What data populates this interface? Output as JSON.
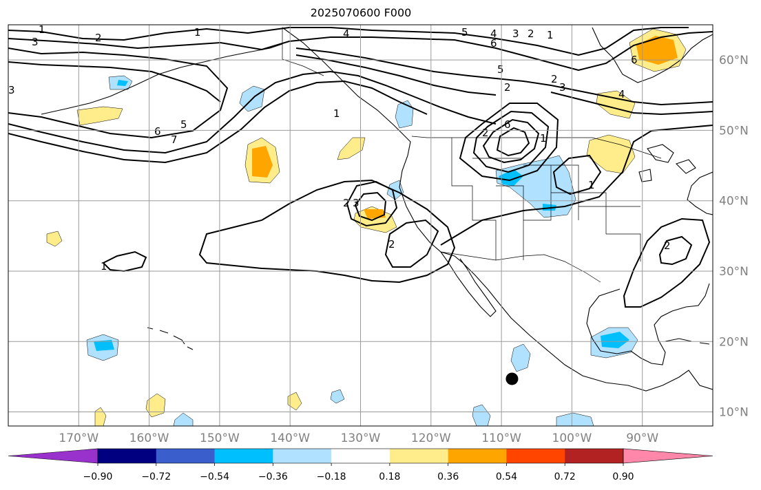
{
  "title": "2025070600 F000",
  "chart_data": {
    "type": "contour-map",
    "projection": "plate-carree",
    "extent": {
      "lon": [
        -180,
        -80
      ],
      "lat": [
        8,
        65
      ]
    },
    "grid": true,
    "lon_ticks": [
      {
        "value": -170,
        "label": "170°W"
      },
      {
        "value": -160,
        "label": "160°W"
      },
      {
        "value": -150,
        "label": "150°W"
      },
      {
        "value": -140,
        "label": "140°W"
      },
      {
        "value": -130,
        "label": "130°W"
      },
      {
        "value": -120,
        "label": "120°W"
      },
      {
        "value": -110,
        "label": "110°W"
      },
      {
        "value": -100,
        "label": "100°W"
      },
      {
        "value": -90,
        "label": "90°W"
      }
    ],
    "lat_ticks": [
      {
        "value": 10,
        "label": "10°N"
      },
      {
        "value": 20,
        "label": "20°N"
      },
      {
        "value": 30,
        "label": "30°N"
      },
      {
        "value": 40,
        "label": "40°N"
      },
      {
        "value": 50,
        "label": "50°N"
      },
      {
        "value": 60,
        "label": "60°N"
      }
    ],
    "marker": {
      "lon": -108.5,
      "lat": 14.7,
      "color": "#000000"
    },
    "contour_labels": [
      "1",
      "2",
      "3",
      "4",
      "5",
      "6",
      "7"
    ],
    "colorbar": {
      "levels": [
        -0.9,
        -0.72,
        -0.54,
        -0.36,
        -0.18,
        0.18,
        0.36,
        0.54,
        0.72,
        0.9
      ],
      "tick_labels": [
        "−0.90",
        "−0.72",
        "−0.54",
        "−0.36",
        "−0.18",
        "0.18",
        "0.36",
        "0.54",
        "0.72",
        "0.90"
      ],
      "colors": [
        "#9932cc",
        "#000080",
        "#3a5fcd",
        "#00bfff",
        "#b0e2ff",
        "#ffffff",
        "#ffec8b",
        "#ffa500",
        "#ff4500",
        "#b22222",
        "#ff88aa"
      ],
      "extend": "both"
    }
  }
}
